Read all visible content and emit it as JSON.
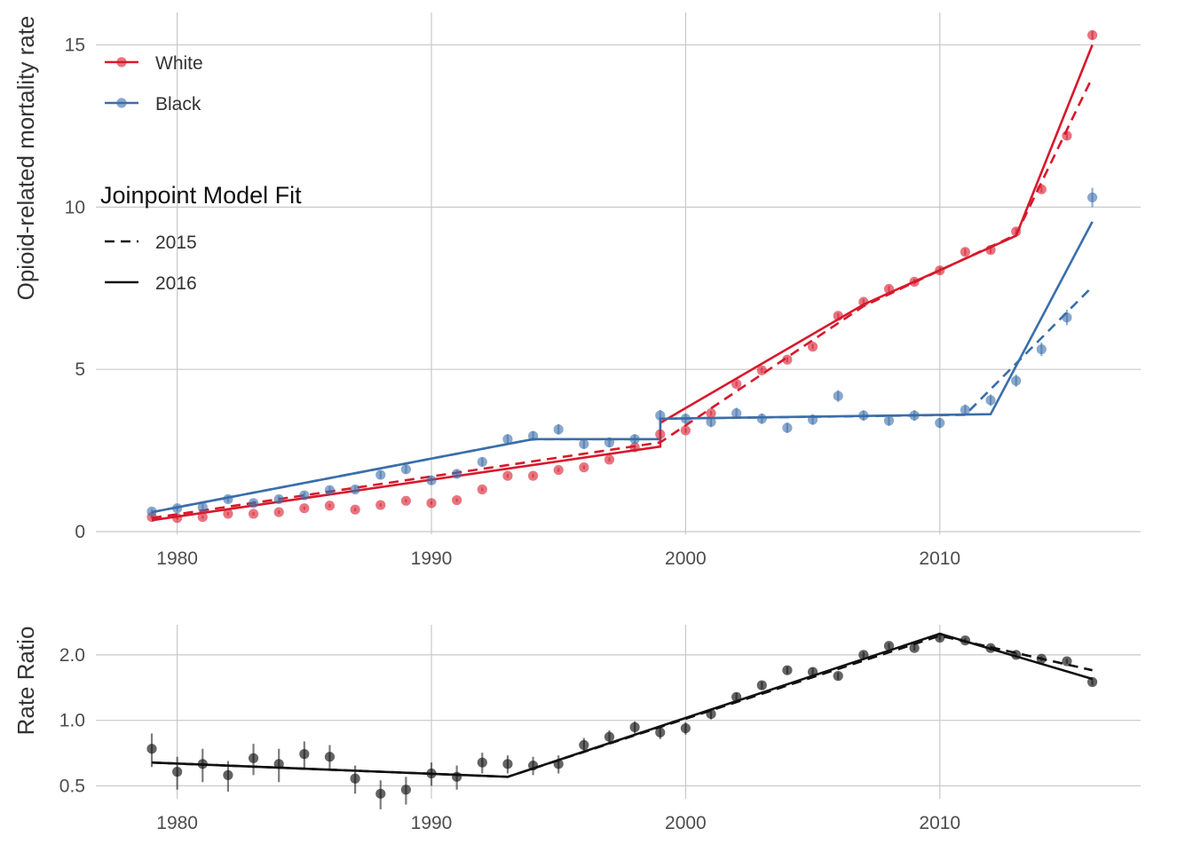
{
  "colors": {
    "white": "#D7192C",
    "black": "#3A6EAA",
    "ratio": "#111111",
    "grid": "#C8C8C8"
  },
  "chart_data": [
    {
      "type": "scatter",
      "ylabel": "Opioid-related mortality rate",
      "xlim": [
        1976.8,
        2017.9
      ],
      "ylim": [
        -0.3,
        16
      ],
      "xticks": [
        1980,
        1990,
        2000,
        2010
      ],
      "yticks": [
        0,
        5,
        10,
        15
      ],
      "legend": {
        "position": "top-left",
        "series_entries": [
          "White",
          "Black"
        ],
        "model_title": "Joinpoint Model Fit",
        "model_entries": [
          {
            "label": "2015",
            "style": "dashed"
          },
          {
            "label": "2016",
            "style": "solid"
          }
        ]
      },
      "series": [
        {
          "name": "White",
          "color": "#D7192C",
          "x": [
            1979,
            1980,
            1981,
            1982,
            1983,
            1984,
            1985,
            1986,
            1987,
            1988,
            1989,
            1990,
            1991,
            1992,
            1993,
            1994,
            1995,
            1996,
            1997,
            1998,
            1999,
            2000,
            2001,
            2002,
            2003,
            2004,
            2005,
            2006,
            2007,
            2008,
            2009,
            2010,
            2011,
            2012,
            2013,
            2014,
            2015,
            2016
          ],
          "y": [
            0.45,
            0.42,
            0.45,
            0.55,
            0.55,
            0.6,
            0.72,
            0.8,
            0.68,
            0.82,
            0.95,
            0.88,
            0.97,
            1.3,
            1.72,
            1.72,
            1.9,
            1.98,
            2.22,
            2.6,
            3.0,
            3.12,
            3.65,
            4.55,
            4.97,
            5.3,
            5.7,
            6.65,
            7.08,
            7.48,
            7.7,
            8.05,
            8.62,
            8.68,
            9.25,
            10.55,
            12.2,
            15.3
          ],
          "err": [
            0.05,
            0.05,
            0.05,
            0.05,
            0.05,
            0.05,
            0.05,
            0.05,
            0.05,
            0.05,
            0.05,
            0.05,
            0.05,
            0.05,
            0.06,
            0.06,
            0.06,
            0.06,
            0.06,
            0.06,
            0.07,
            0.07,
            0.07,
            0.08,
            0.08,
            0.08,
            0.08,
            0.09,
            0.09,
            0.09,
            0.09,
            0.1,
            0.1,
            0.1,
            0.1,
            0.1,
            0.12,
            0.14
          ],
          "fit_2016": {
            "x": [
              1979,
              1999,
              1999,
              2007,
              2013,
              2016
            ],
            "y": [
              0.35,
              2.62,
              3.35,
              7.0,
              9.12,
              15.0
            ]
          },
          "fit_2015": {
            "x": [
              1979,
              1999,
              2007,
              2013,
              2016
            ],
            "y": [
              0.42,
              2.75,
              6.95,
              9.15,
              14.0
            ]
          }
        },
        {
          "name": "Black",
          "color": "#3A6EAA",
          "x": [
            1979,
            1980,
            1981,
            1982,
            1983,
            1984,
            1985,
            1986,
            1987,
            1988,
            1989,
            1990,
            1991,
            1992,
            1993,
            1994,
            1995,
            1996,
            1997,
            1998,
            1999,
            2000,
            2001,
            2002,
            2003,
            2004,
            2005,
            2006,
            2007,
            2008,
            2009,
            2010,
            2011,
            2012,
            2013,
            2014,
            2015,
            2016
          ],
          "y": [
            0.62,
            0.72,
            0.75,
            1.0,
            0.88,
            1.0,
            1.12,
            1.28,
            1.3,
            1.75,
            1.92,
            1.58,
            1.78,
            2.15,
            2.85,
            2.95,
            3.15,
            2.7,
            2.75,
            2.85,
            3.58,
            3.48,
            3.38,
            3.65,
            3.48,
            3.2,
            3.45,
            4.18,
            3.58,
            3.42,
            3.58,
            3.35,
            3.75,
            4.05,
            4.65,
            5.62,
            6.6,
            10.3
          ],
          "err": [
            0.08,
            0.08,
            0.09,
            0.1,
            0.09,
            0.1,
            0.1,
            0.11,
            0.11,
            0.12,
            0.13,
            0.12,
            0.12,
            0.13,
            0.15,
            0.15,
            0.16,
            0.15,
            0.15,
            0.15,
            0.17,
            0.16,
            0.16,
            0.17,
            0.16,
            0.16,
            0.16,
            0.18,
            0.16,
            0.16,
            0.16,
            0.16,
            0.17,
            0.18,
            0.19,
            0.21,
            0.24,
            0.3
          ],
          "fit_2016": {
            "x": [
              1979,
              1994,
              1999,
              1999,
              2012,
              2016
            ],
            "y": [
              0.6,
              2.85,
              2.85,
              3.48,
              3.62,
              9.55
            ]
          },
          "fit_2015": {
            "x": [
              1979,
              1994,
              1999,
              1999,
              2011,
              2016
            ],
            "y": [
              0.6,
              2.85,
              2.85,
              3.48,
              3.6,
              7.55
            ]
          }
        }
      ]
    },
    {
      "type": "scatter",
      "ylabel": "Rate Ratio",
      "yscale": "log",
      "xlim": [
        1976.8,
        2017.9
      ],
      "ylim": [
        0.42,
        2.75
      ],
      "xticks": [
        1980,
        1990,
        2000,
        2010
      ],
      "yticks": [
        0.5,
        1.0,
        2.0
      ],
      "ytick_labels": [
        "0.5",
        "1.0",
        "2.0"
      ],
      "series": [
        {
          "name": "Rate Ratio",
          "color": "#111111",
          "x": [
            1979,
            1980,
            1981,
            1982,
            1983,
            1984,
            1985,
            1986,
            1987,
            1988,
            1989,
            1990,
            1991,
            1992,
            1993,
            1994,
            1995,
            1996,
            1997,
            1998,
            1999,
            2000,
            2001,
            2002,
            2003,
            2004,
            2005,
            2006,
            2007,
            2008,
            2009,
            2010,
            2011,
            2012,
            2013,
            2014,
            2015,
            2016
          ],
          "y": [
            0.74,
            0.58,
            0.63,
            0.56,
            0.67,
            0.63,
            0.7,
            0.68,
            0.54,
            0.46,
            0.48,
            0.57,
            0.55,
            0.64,
            0.63,
            0.62,
            0.63,
            0.77,
            0.84,
            0.93,
            0.88,
            0.92,
            1.07,
            1.28,
            1.45,
            1.7,
            1.67,
            1.6,
            2.0,
            2.2,
            2.15,
            2.4,
            2.33,
            2.15,
            2.0,
            1.92,
            1.87,
            1.5
          ],
          "err": [
            0.13,
            0.1,
            0.11,
            0.09,
            0.11,
            0.11,
            0.1,
            0.09,
            0.08,
            0.07,
            0.07,
            0.07,
            0.07,
            0.07,
            0.06,
            0.06,
            0.06,
            0.06,
            0.06,
            0.06,
            0.06,
            0.06,
            0.06,
            0.06,
            0.06,
            0.07,
            0.07,
            0.06,
            0.07,
            0.07,
            0.06,
            0.07,
            0.06,
            0.06,
            0.05,
            0.05,
            0.05,
            0.05
          ],
          "fit_2016": {
            "x": [
              1979,
              1993,
              2010,
              2016
            ],
            "y": [
              0.64,
              0.55,
              2.5,
              1.55
            ]
          },
          "fit_2015": {
            "x": [
              1979,
              1993,
              2010,
              2016
            ],
            "y": [
              0.64,
              0.55,
              2.45,
              1.7
            ]
          }
        }
      ]
    }
  ]
}
